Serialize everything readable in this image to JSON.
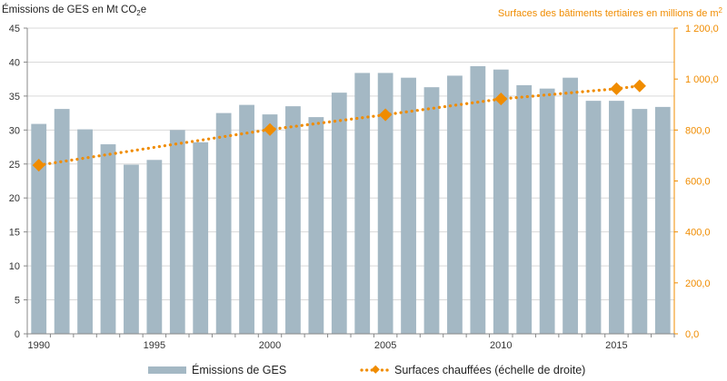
{
  "chart_data": {
    "type": "bar+line",
    "x": [
      1990,
      1991,
      1992,
      1993,
      1994,
      1995,
      1996,
      1997,
      1998,
      1999,
      2000,
      2001,
      2002,
      2003,
      2004,
      2005,
      2006,
      2007,
      2008,
      2009,
      2010,
      2011,
      2012,
      2013,
      2014,
      2015,
      2016,
      2017
    ],
    "x_tick_labels": [
      "1990",
      "1995",
      "2000",
      "2005",
      "2010",
      "2015"
    ],
    "series": [
      {
        "name": "Émissions de GES",
        "axis": "left",
        "kind": "bar",
        "color": "#a4b8c4",
        "values": [
          30.9,
          33.1,
          30.1,
          27.9,
          24.9,
          25.6,
          30.0,
          28.2,
          32.5,
          33.7,
          32.3,
          33.5,
          31.9,
          35.5,
          38.4,
          38.4,
          37.7,
          36.3,
          38.0,
          39.4,
          38.9,
          36.6,
          36.1,
          37.7,
          34.3,
          34.3,
          33.1,
          33.4
        ]
      },
      {
        "name": "Surfaces chauffées (échelle de droite)",
        "axis": "right",
        "kind": "dotted-line-with-markers",
        "color": "#f08c00",
        "marker_years": [
          1990,
          2000,
          2005,
          2010,
          2015,
          2016
        ],
        "marker_values": [
          662,
          802,
          860,
          922,
          962,
          973
        ]
      }
    ],
    "y_left": {
      "title_prefix": "Émissions de GES en Mt CO",
      "title_sub": "2",
      "title_suffix": "e",
      "ylim": [
        0,
        45
      ],
      "ticks": [
        0,
        5,
        10,
        15,
        20,
        25,
        30,
        35,
        40,
        45
      ],
      "tick_labels": [
        "0",
        "5",
        "10",
        "15",
        "20",
        "25",
        "30",
        "35",
        "40",
        "45"
      ]
    },
    "y_right": {
      "title_prefix": "Surfaces des bâtiments tertiaires en millions de m",
      "title_sup": "2",
      "ylim": [
        0,
        1200
      ],
      "ticks": [
        0,
        200,
        400,
        600,
        800,
        1000,
        1200
      ],
      "tick_labels": [
        "0,0",
        "200,0",
        "400,0",
        "600,0",
        "800,0",
        "1 000,0",
        "1 200,0"
      ]
    },
    "grid": true,
    "legend": {
      "position": "bottom",
      "items": [
        "Émissions de GES",
        "Surfaces chauffées (échelle de droite)"
      ]
    }
  }
}
